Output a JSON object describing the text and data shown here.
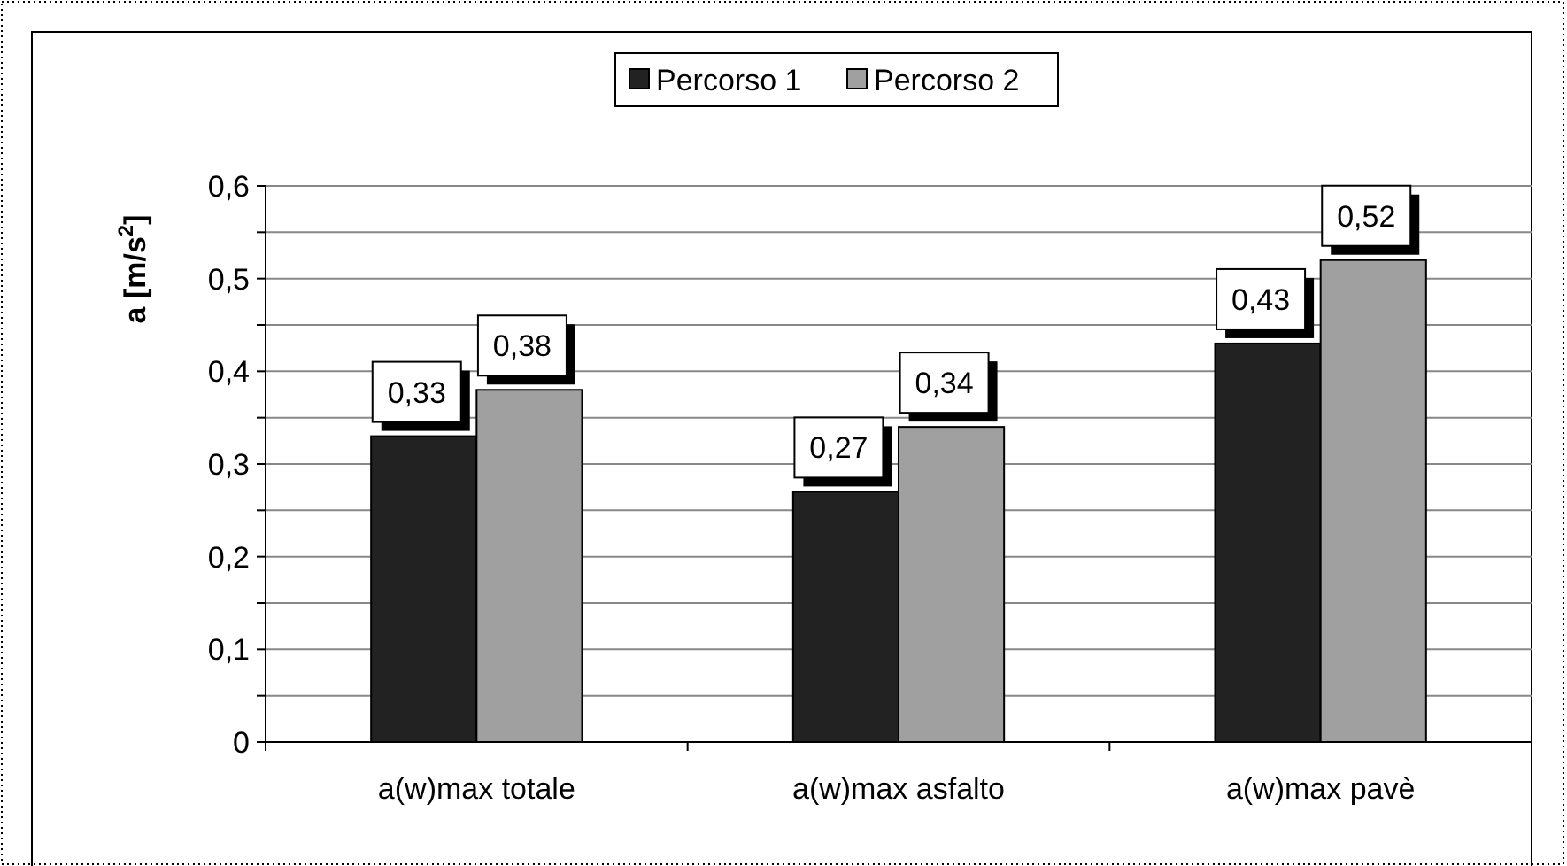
{
  "chart_data": {
    "type": "bar",
    "ylabel": "a [m/s$^{2}$]",
    "categories": [
      "a(w)max totale",
      "a(w)max asfalto",
      "a(w)max pavè"
    ],
    "series": [
      {
        "name": "Percorso 1",
        "color": "#222222",
        "values": [
          0.33,
          0.27,
          0.43
        ],
        "value_labels": [
          "0,33",
          "0,27",
          "0,43"
        ]
      },
      {
        "name": "Percorso 2",
        "color": "#a0a0a0",
        "values": [
          0.38,
          0.34,
          0.52
        ],
        "value_labels": [
          "0,38",
          "0,34",
          "0,52"
        ]
      }
    ],
    "ylim": [
      0,
      0.6
    ],
    "yticks": [
      {
        "value": 0,
        "label": "0"
      },
      {
        "value": 0.05,
        "label": null
      },
      {
        "value": 0.1,
        "label": "0,1"
      },
      {
        "value": 0.15,
        "label": null
      },
      {
        "value": 0.2,
        "label": "0,2"
      },
      {
        "value": 0.25,
        "label": null
      },
      {
        "value": 0.3,
        "label": "0,3"
      },
      {
        "value": 0.35,
        "label": null
      },
      {
        "value": 0.4,
        "label": "0,4"
      },
      {
        "value": 0.45,
        "label": null
      },
      {
        "value": 0.5,
        "label": "0,5"
      },
      {
        "value": 0.55,
        "label": null
      },
      {
        "value": 0.6,
        "label": "0,6"
      }
    ],
    "grid": "y",
    "legend": "top"
  }
}
